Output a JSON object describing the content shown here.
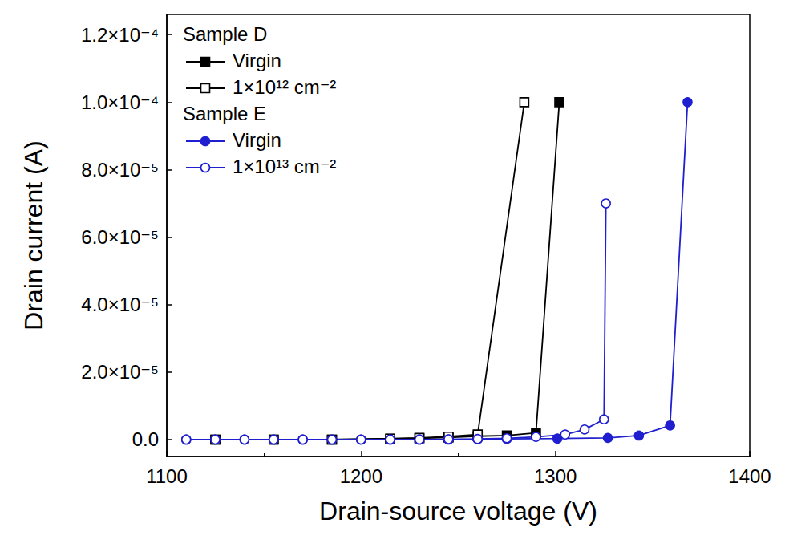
{
  "chart_data": {
    "type": "line",
    "x_label": "Drain-source voltage (V)",
    "y_label": "Drain current (A)",
    "xlim": [
      1100,
      1400
    ],
    "xticks": [
      1100,
      1200,
      1300,
      1400
    ],
    "ylim": [
      -5e-06,
      0.000126
    ],
    "yticks": [
      {
        "value": 0,
        "label": "0.0"
      },
      {
        "value": 2e-05,
        "label": "2.0×10⁻⁵"
      },
      {
        "value": 4e-05,
        "label": "4.0×10⁻⁵"
      },
      {
        "value": 6e-05,
        "label": "6.0×10⁻⁵"
      },
      {
        "value": 8e-05,
        "label": "8.0×10⁻⁵"
      },
      {
        "value": 0.0001,
        "label": "1.0×10⁻⁴"
      },
      {
        "value": 0.00012,
        "label": "1.2×10⁻⁴"
      }
    ],
    "grid": false,
    "legend": "upper left",
    "series": [
      {
        "group": "Sample D",
        "name": "Virgin",
        "color": "#000000",
        "marker": "square",
        "line_style": "solid",
        "x": [
          1125,
          1155,
          1185,
          1215,
          1230,
          1245,
          1260,
          1275,
          1290,
          1302
        ],
        "values": [
          0,
          0,
          0,
          2e-07,
          4e-07,
          6e-07,
          1e-06,
          1.2e-06,
          2e-06,
          0.0001
        ]
      },
      {
        "group": "Sample D",
        "name": "1×10¹² cm⁻²",
        "color": "#000000",
        "marker": "open square",
        "line_style": "solid",
        "x": [
          1125,
          1155,
          1185,
          1215,
          1230,
          1245,
          1260,
          1284
        ],
        "values": [
          0,
          0,
          0,
          3e-07,
          5e-07,
          9e-07,
          1.5e-06,
          0.0001
        ]
      },
      {
        "group": "Sample E",
        "name": "Virgin",
        "color": "#1f1fd0",
        "marker": "circle",
        "line_style": "solid",
        "x": [
          1110,
          1125,
          1140,
          1155,
          1170,
          1185,
          1200,
          1215,
          1230,
          1245,
          1260,
          1275,
          1301,
          1327,
          1343,
          1359,
          1368
        ],
        "values": [
          0,
          0,
          0,
          0,
          0,
          0,
          0,
          0,
          0,
          0,
          1e-07,
          2e-07,
          3e-07,
          5e-07,
          1.2e-06,
          4.2e-06,
          0.0001
        ]
      },
      {
        "group": "Sample E",
        "name": "1×10¹³ cm⁻²",
        "color": "#1f1fd0",
        "marker": "open circle",
        "line_style": "solid",
        "x": [
          1110,
          1125,
          1140,
          1155,
          1170,
          1185,
          1200,
          1215,
          1230,
          1245,
          1260,
          1275,
          1290,
          1305,
          1315,
          1325,
          1326
        ],
        "values": [
          0,
          0,
          0,
          0,
          0,
          0,
          0,
          0,
          0,
          1e-07,
          2e-07,
          4e-07,
          8e-07,
          1.5e-06,
          3e-06,
          6e-06,
          7e-05
        ]
      }
    ]
  }
}
